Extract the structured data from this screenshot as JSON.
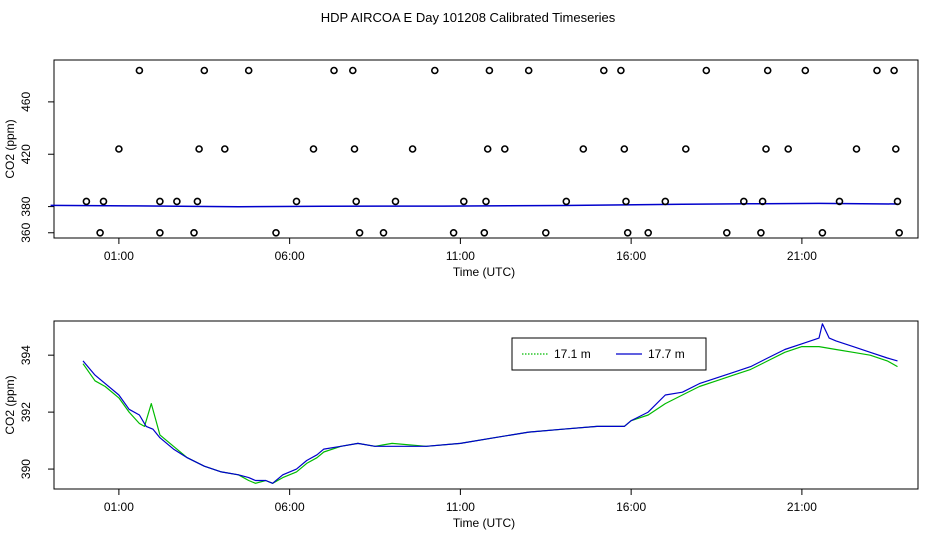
{
  "title": "HDP AIRCOA E  Day 101208  Calibrated Timeseries",
  "colors": {
    "green": "#00bb00",
    "blue": "#0000cc",
    "axis": "#000000"
  },
  "chart_data": [
    {
      "type": "scatter",
      "xlabel": "Time (UTC)",
      "ylabel": "CO2 (ppm)",
      "x_ticks": [
        "01:00",
        "06:00",
        "11:00",
        "16:00",
        "21:00"
      ],
      "x_tick_hours": [
        1,
        6,
        11,
        16,
        21
      ],
      "y_ticks": [
        360,
        380,
        420,
        460
      ],
      "xlim": [
        -0.9,
        24.4
      ],
      "ylim": [
        356,
        492
      ],
      "points": [
        [
          0.45,
          360
        ],
        [
          0.05,
          384
        ],
        [
          0.55,
          384
        ],
        [
          1.0,
          424
        ],
        [
          1.6,
          484
        ],
        [
          2.2,
          360
        ],
        [
          2.2,
          384
        ],
        [
          2.7,
          384
        ],
        [
          3.2,
          360
        ],
        [
          3.3,
          384
        ],
        [
          3.35,
          424
        ],
        [
          3.5,
          484
        ],
        [
          4.1,
          424
        ],
        [
          4.8,
          484
        ],
        [
          5.6,
          360
        ],
        [
          6.2,
          384
        ],
        [
          6.7,
          424
        ],
        [
          7.3,
          484
        ],
        [
          7.85,
          484
        ],
        [
          7.9,
          424
        ],
        [
          7.95,
          384
        ],
        [
          8.05,
          360
        ],
        [
          8.75,
          360
        ],
        [
          9.1,
          384
        ],
        [
          9.6,
          424
        ],
        [
          10.25,
          484
        ],
        [
          10.8,
          360
        ],
        [
          11.1,
          384
        ],
        [
          11.7,
          360
        ],
        [
          11.75,
          384
        ],
        [
          11.8,
          424
        ],
        [
          11.85,
          484
        ],
        [
          12.3,
          424
        ],
        [
          13.0,
          484
        ],
        [
          13.5,
          360
        ],
        [
          14.1,
          384
        ],
        [
          14.6,
          424
        ],
        [
          15.2,
          484
        ],
        [
          15.7,
          484
        ],
        [
          15.8,
          424
        ],
        [
          15.85,
          384
        ],
        [
          15.9,
          360
        ],
        [
          16.5,
          360
        ],
        [
          17.0,
          384
        ],
        [
          17.6,
          424
        ],
        [
          18.2,
          484
        ],
        [
          18.8,
          360
        ],
        [
          19.3,
          384
        ],
        [
          19.8,
          360
        ],
        [
          19.85,
          384
        ],
        [
          19.95,
          424
        ],
        [
          20.0,
          484
        ],
        [
          20.6,
          424
        ],
        [
          21.1,
          484
        ],
        [
          21.6,
          360
        ],
        [
          22.1,
          384
        ],
        [
          22.6,
          424
        ],
        [
          23.2,
          484
        ],
        [
          23.7,
          484
        ],
        [
          23.75,
          424
        ],
        [
          23.8,
          384
        ],
        [
          23.85,
          360
        ]
      ],
      "line": {
        "x": [
          -1.0,
          1.5,
          4.5,
          7.0,
          10.5,
          14.0,
          17.5,
          19.5,
          21.5,
          23.8
        ],
        "y": [
          380.9,
          380.5,
          379.9,
          380.3,
          380.4,
          380.8,
          381.8,
          382.1,
          382.4,
          382.0
        ]
      }
    },
    {
      "type": "line",
      "xlabel": "Time (UTC)",
      "ylabel": "CO2 (ppm)",
      "x_ticks": [
        "01:00",
        "06:00",
        "11:00",
        "16:00",
        "21:00"
      ],
      "x_tick_hours": [
        1,
        6,
        11,
        16,
        21
      ],
      "y_ticks": [
        390,
        392,
        394
      ],
      "xlim": [
        -0.9,
        24.4
      ],
      "ylim": [
        389.3,
        395.2
      ],
      "legend": {
        "placement": "top-right",
        "entries": [
          "17.1 m",
          "17.7 m"
        ]
      },
      "series": [
        {
          "name": "17.1 m",
          "color": "#00bb00",
          "x": [
            -0.05,
            0.3,
            0.6,
            1.0,
            1.3,
            1.6,
            1.75,
            1.85,
            1.95,
            2.2,
            2.6,
            3.0,
            3.5,
            4.0,
            4.5,
            4.8,
            5.0,
            5.3,
            5.5,
            5.8,
            6.2,
            6.5,
            6.8,
            7.0,
            7.5,
            8.0,
            8.5,
            9.0,
            10.0,
            11.0,
            12.0,
            13.0,
            14.0,
            15.0,
            15.8,
            16.0,
            16.5,
            17.0,
            17.5,
            18.0,
            18.5,
            19.0,
            19.5,
            20.0,
            20.5,
            21.0,
            21.5,
            22.0,
            22.5,
            23.0,
            23.5,
            23.8
          ],
          "y": [
            393.7,
            393.1,
            392.9,
            392.5,
            392.0,
            391.6,
            391.5,
            391.9,
            392.3,
            391.2,
            390.8,
            390.4,
            390.1,
            389.9,
            389.8,
            389.6,
            389.5,
            389.6,
            389.5,
            389.7,
            389.9,
            390.2,
            390.4,
            390.6,
            390.8,
            390.9,
            390.8,
            390.9,
            390.8,
            390.9,
            391.1,
            391.3,
            391.4,
            391.5,
            391.5,
            391.7,
            391.9,
            392.3,
            392.6,
            392.9,
            393.1,
            393.3,
            393.5,
            393.8,
            394.1,
            394.3,
            394.3,
            394.2,
            394.1,
            394.0,
            393.8,
            393.6
          ]
        },
        {
          "name": "17.7 m",
          "color": "#0000cc",
          "x": [
            -0.05,
            0.3,
            0.6,
            1.0,
            1.3,
            1.6,
            1.8,
            2.0,
            2.2,
            2.6,
            3.0,
            3.5,
            4.0,
            4.5,
            4.8,
            5.0,
            5.3,
            5.5,
            5.8,
            6.2,
            6.5,
            6.8,
            7.0,
            7.5,
            8.0,
            8.5,
            9.0,
            10.0,
            11.0,
            12.0,
            13.0,
            14.0,
            15.0,
            15.8,
            16.0,
            16.5,
            17.0,
            17.5,
            18.0,
            18.5,
            19.0,
            19.5,
            20.0,
            20.5,
            21.0,
            21.5,
            21.6,
            21.8,
            22.0,
            22.5,
            23.0,
            23.5,
            23.8
          ],
          "y": [
            393.8,
            393.3,
            393.0,
            392.6,
            392.1,
            391.9,
            391.5,
            391.4,
            391.1,
            390.7,
            390.4,
            390.1,
            389.9,
            389.8,
            389.7,
            389.6,
            389.6,
            389.5,
            389.8,
            390.0,
            390.3,
            390.5,
            390.7,
            390.8,
            390.9,
            390.8,
            390.8,
            390.8,
            390.9,
            391.1,
            391.3,
            391.4,
            391.5,
            391.5,
            391.7,
            392.0,
            392.6,
            392.7,
            393.0,
            393.2,
            393.4,
            393.6,
            393.9,
            394.2,
            394.4,
            394.6,
            395.1,
            394.6,
            394.5,
            394.3,
            394.1,
            393.9,
            393.8
          ]
        }
      ]
    }
  ]
}
